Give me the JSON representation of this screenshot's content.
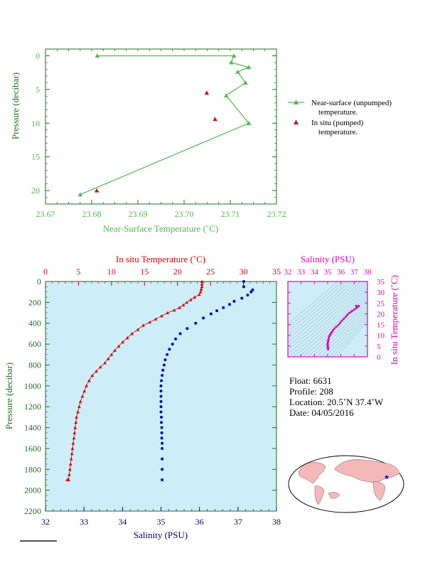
{
  "colors": {
    "green": "#4db84d",
    "red": "#dd0000",
    "blue": "#0000cc",
    "magenta": "#dd00bb",
    "darkgreen": "#1e6e1e",
    "navy": "#000080",
    "panel_bg": "#cdeef8"
  },
  "top_chart": {
    "xlabel": "Near-Surface Temperature (˚C)",
    "ylabel": "Pressure (decibar)",
    "xlim": [
      23.67,
      23.72
    ],
    "ylim": [
      22,
      -1
    ],
    "xticks": [
      "23.67",
      "23.68",
      "23.69",
      "23.70",
      "23.71",
      "23.72"
    ],
    "yticks": [
      "0",
      "5",
      "10",
      "15",
      "20"
    ],
    "legend": {
      "item1_line1": "Near-surface (unpumped)",
      "item1_line2": "temperature.",
      "item2_line1": "In situ (pumped)",
      "item2_line2": "temperature."
    }
  },
  "bottom_chart": {
    "top_xlabel": "In situ Temperature (˚C)",
    "bottom_xlabel": "Salinity (PSU)",
    "ylabel": "Pressure (decibar)",
    "temp_ticks": [
      "0",
      "5",
      "10",
      "15",
      "20",
      "25",
      "30",
      "35"
    ],
    "sal_ticks": [
      "32",
      "33",
      "34",
      "35",
      "36",
      "37",
      "38"
    ],
    "pres_ticks": [
      "0",
      "200",
      "400",
      "600",
      "800",
      "1000",
      "1200",
      "1400",
      "1600",
      "1800",
      "2000",
      "2200"
    ]
  },
  "ts_panel": {
    "xlabel": "Salinity (PSU)",
    "ylabel": "In situ Temperature (˚C)",
    "xticks": [
      "32",
      "33",
      "34",
      "35",
      "36",
      "37",
      "38"
    ],
    "yticks": [
      "0",
      "5",
      "10",
      "15",
      "20",
      "25",
      "30",
      "35"
    ]
  },
  "info": {
    "float": "Float:  6631",
    "profile": "Profile:  208",
    "location": "Location:  20.5˚N  37.4˚W",
    "date": "Date:  04/05/2016"
  },
  "chart_data": [
    {
      "type": "line",
      "series": [
        {
          "name": "Near-surface (unpumped) temperature.",
          "x": [
            23.6812,
            23.7108,
            23.7102,
            23.714,
            23.7116,
            23.7133,
            23.7091,
            23.714,
            23.6775
          ],
          "y": [
            0.0,
            0.0,
            1.0,
            1.7,
            2.4,
            4.0,
            5.9,
            10.0,
            20.6
          ]
        },
        {
          "name": "In situ (pumped) temperature.",
          "x": [
            23.7049,
            23.7067,
            23.6811
          ],
          "y": [
            5.5,
            9.4,
            20.0
          ]
        }
      ]
    },
    {
      "type": "scatter",
      "temperature": {
        "values": [
          23.7,
          23.7,
          23.7,
          23.6,
          23.5,
          23.3,
          22.6,
          22.0,
          21.4,
          20.9,
          20.3,
          19.5,
          18.5,
          17.6,
          16.7,
          15.8,
          14.8,
          14.0,
          13.1,
          12.4,
          11.7,
          11.1,
          10.5,
          10.0,
          9.5,
          9.0,
          8.3,
          7.7,
          7.1,
          6.6,
          6.2,
          5.9,
          5.6,
          5.3,
          5.1,
          4.9,
          4.7,
          4.6,
          4.5,
          4.4,
          4.3,
          4.2,
          4.1,
          4.0,
          3.9,
          3.8,
          3.7,
          3.6,
          3.5,
          3.4,
          3.3
        ],
        "pressure": [
          0,
          25,
          50,
          75,
          100,
          125,
          150,
          175,
          200,
          225,
          250,
          275,
          300,
          330,
          360,
          390,
          420,
          460,
          500,
          540,
          580,
          620,
          660,
          700,
          740,
          780,
          820,
          860,
          900,
          950,
          1000,
          1050,
          1100,
          1150,
          1200,
          1250,
          1300,
          1350,
          1400,
          1450,
          1500,
          1550,
          1600,
          1650,
          1700,
          1750,
          1800,
          1850,
          1900,
          1900,
          1900
        ]
      },
      "salinity": {
        "values": [
          37.15,
          37.15,
          37.38,
          37.34,
          37.25,
          37.1,
          36.9,
          36.78,
          36.62,
          36.45,
          36.3,
          36.1,
          35.9,
          35.68,
          35.5,
          35.38,
          35.3,
          35.22,
          35.16,
          35.11,
          35.08,
          35.05,
          35.03,
          35.01,
          35.0,
          35.0,
          35.0,
          35.0,
          35.0,
          35.0,
          35.01,
          35.01,
          35.02,
          35.02,
          35.02,
          35.03,
          35.03,
          35.03,
          35.03,
          35.03
        ],
        "pressure": [
          0,
          50,
          80,
          100,
          130,
          160,
          190,
          220,
          250,
          280,
          310,
          350,
          400,
          450,
          500,
          550,
          600,
          650,
          700,
          750,
          800,
          850,
          900,
          950,
          1000,
          1050,
          1100,
          1150,
          1200,
          1250,
          1300,
          1350,
          1400,
          1450,
          1500,
          1550,
          1600,
          1700,
          1800,
          1900
        ]
      },
      "temp_range": [
        0,
        35
      ],
      "sal_range": [
        32,
        38
      ],
      "pressure_range": [
        0,
        2200
      ]
    }
  ]
}
